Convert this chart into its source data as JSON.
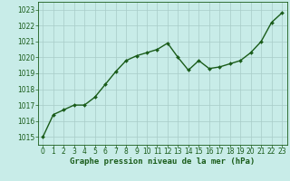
{
  "x": [
    0,
    1,
    2,
    3,
    4,
    5,
    6,
    7,
    8,
    9,
    10,
    11,
    12,
    13,
    14,
    15,
    16,
    17,
    18,
    19,
    20,
    21,
    22,
    23
  ],
  "y": [
    1015.0,
    1016.4,
    1016.7,
    1017.0,
    1017.0,
    1017.5,
    1018.3,
    1019.1,
    1019.8,
    1020.1,
    1020.3,
    1020.5,
    1020.9,
    1020.0,
    1019.2,
    1019.8,
    1019.3,
    1019.4,
    1019.6,
    1019.8,
    1020.3,
    1021.0,
    1022.2,
    1022.8
  ],
  "line_color": "#1a5c1a",
  "marker": "D",
  "marker_size": 2.0,
  "background_color": "#c8ece8",
  "grid_color": "#a8ccc8",
  "xlabel": "Graphe pression niveau de la mer (hPa)",
  "xlabel_color": "#1a5c1a",
  "tick_color": "#1a5c1a",
  "ylim": [
    1014.5,
    1023.5
  ],
  "xlim": [
    -0.5,
    23.5
  ],
  "yticks": [
    1015,
    1016,
    1017,
    1018,
    1019,
    1020,
    1021,
    1022,
    1023
  ],
  "xticks": [
    0,
    1,
    2,
    3,
    4,
    5,
    6,
    7,
    8,
    9,
    10,
    11,
    12,
    13,
    14,
    15,
    16,
    17,
    18,
    19,
    20,
    21,
    22,
    23
  ],
  "line_width": 1.0,
  "spine_color": "#1a5c1a",
  "tick_fontsize": 5.5,
  "xlabel_fontsize": 6.5
}
